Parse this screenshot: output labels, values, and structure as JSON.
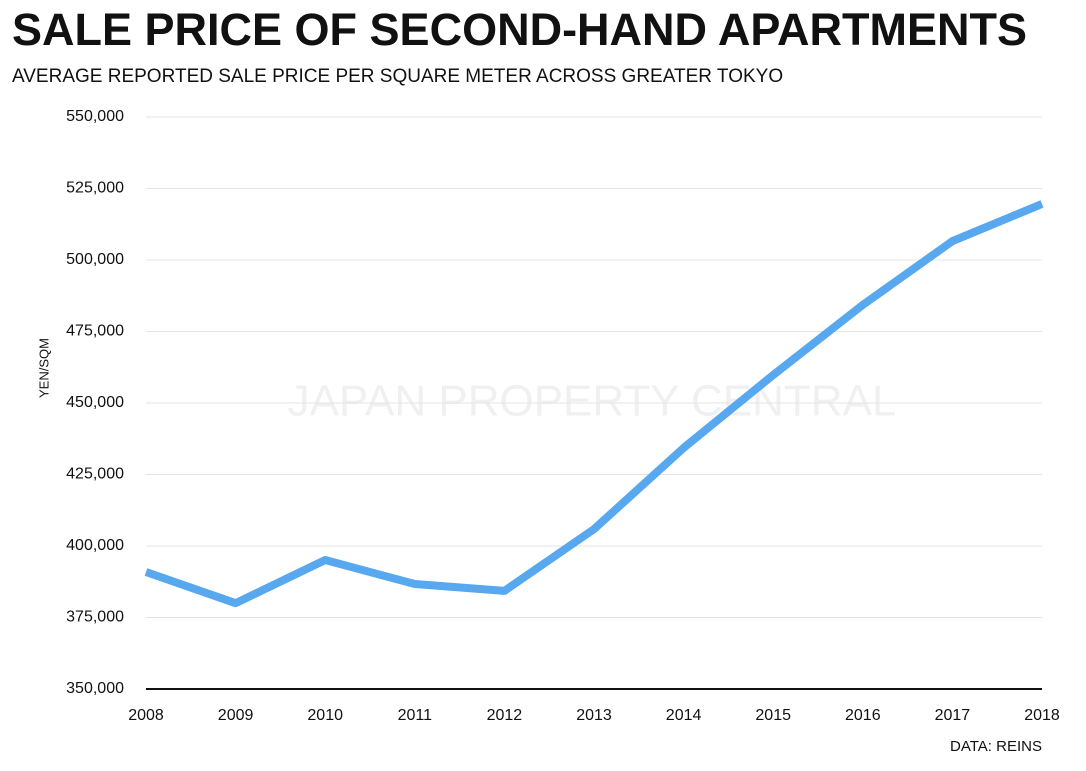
{
  "chart_data": {
    "type": "line",
    "title": "SALE PRICE OF SECOND-HAND APARTMENTS",
    "subtitle": "AVERAGE REPORTED SALE PRICE PER SQUARE METER ACROSS GREATER TOKYO",
    "y_label": "YEN/SQM",
    "watermark": "JAPAN PROPERTY CENTRAL",
    "source": "DATA: REINS",
    "x": [
      2008,
      2009,
      2010,
      2011,
      2012,
      2013,
      2014,
      2015,
      2016,
      2017,
      2018
    ],
    "values": [
      390900,
      380000,
      395100,
      386700,
      384300,
      405900,
      434300,
      459800,
      484300,
      506600,
      519600
    ],
    "color": "#58a8f0",
    "xlim": [
      2008,
      2018
    ],
    "xticks": [
      2008,
      2009,
      2010,
      2011,
      2012,
      2013,
      2014,
      2015,
      2016,
      2017,
      2018
    ],
    "ylim": [
      350000,
      550000
    ],
    "yticks": [
      {
        "value": 350000,
        "label": "350,000"
      },
      {
        "value": 375000,
        "label": "375,000"
      },
      {
        "value": 400000,
        "label": "400,000"
      },
      {
        "value": 425000,
        "label": "425,000"
      },
      {
        "value": 450000,
        "label": "450,000"
      },
      {
        "value": 475000,
        "label": "475,000"
      },
      {
        "value": 500000,
        "label": "500,000"
      },
      {
        "value": 525000,
        "label": "525,000"
      },
      {
        "value": 550000,
        "label": "550,000"
      }
    ],
    "grid": true
  }
}
